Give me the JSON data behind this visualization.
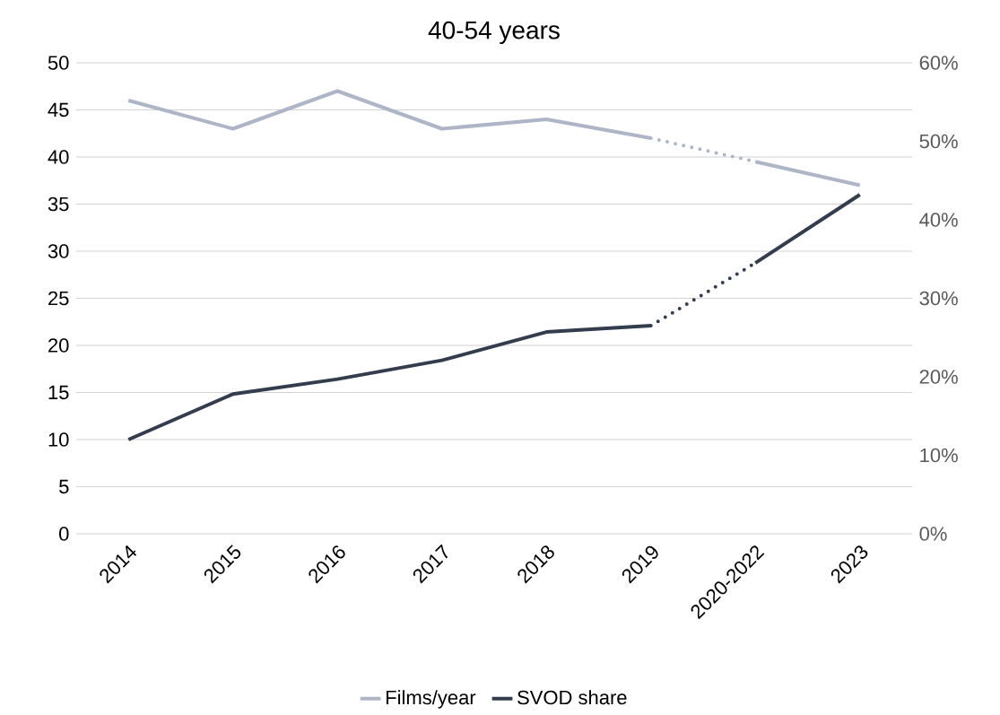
{
  "chart_data": {
    "type": "line",
    "title": "40-54 years",
    "categories": [
      "2014",
      "2015",
      "2016",
      "2017",
      "2018",
      "2019",
      "2020-2022",
      "2023"
    ],
    "series": [
      {
        "name": "Films/year",
        "color": "#adb5c7",
        "line_style": "solid",
        "values": [
          46,
          43,
          47,
          43,
          44,
          42,
          null,
          null
        ]
      },
      {
        "color": "#adb5c7",
        "line_style": "dotted",
        "values": [
          null,
          null,
          null,
          null,
          null,
          42,
          39.5,
          null
        ]
      },
      {
        "color": "#adb5c7",
        "line_style": "solid",
        "values": [
          null,
          null,
          null,
          null,
          null,
          null,
          39.5,
          37
        ]
      },
      {
        "name": "SVOD share",
        "color": "#333d4d",
        "line_style": "solid",
        "axis": "y2",
        "values": [
          12,
          17.8,
          19.7,
          22.1,
          25.7,
          26.5,
          null,
          null
        ]
      },
      {
        "color": "#333d4d",
        "line_style": "dotted",
        "axis": "y2",
        "values": [
          null,
          null,
          null,
          null,
          null,
          26.5,
          34.5,
          null
        ]
      },
      {
        "color": "#333d4d",
        "line_style": "solid",
        "axis": "y2",
        "values": [
          null,
          null,
          null,
          null,
          null,
          null,
          34.5,
          43.2
        ]
      }
    ],
    "ylim": [
      0,
      50
    ],
    "yticks": [
      0,
      5,
      10,
      15,
      20,
      25,
      30,
      35,
      40,
      45,
      50
    ],
    "y2lim": [
      0,
      60
    ],
    "y2ticks": [
      {
        "value": 0,
        "label": "0%"
      },
      {
        "value": 10,
        "label": "10%"
      },
      {
        "value": 20,
        "label": "20%"
      },
      {
        "value": 30,
        "label": "30%"
      },
      {
        "value": 40,
        "label": "40%"
      },
      {
        "value": 50,
        "label": "50%"
      },
      {
        "value": 60,
        "label": "60%"
      }
    ],
    "grid": "y",
    "legend": "bottom"
  }
}
